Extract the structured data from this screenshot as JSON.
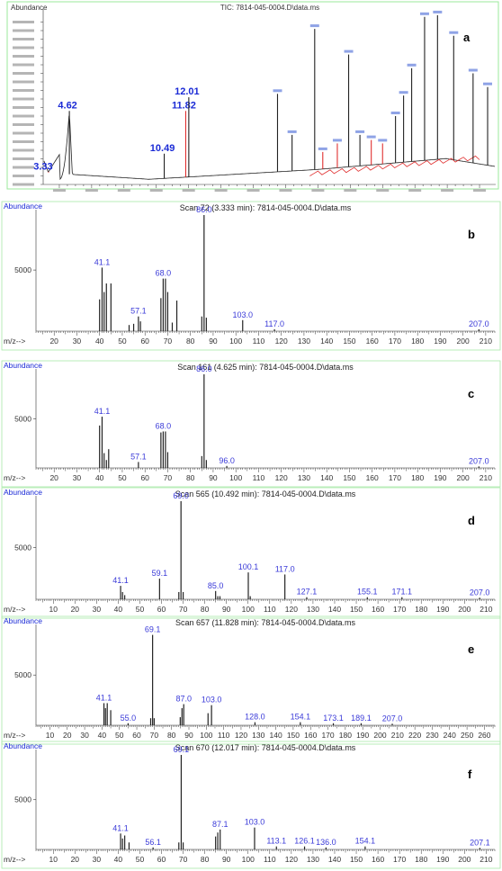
{
  "chart_data": [
    {
      "panel": "a",
      "type": "line",
      "title": "TIC: 7814-045-0004.D\\data.ms",
      "ylabel": "Abundance",
      "xlim": [
        3,
        31
      ],
      "ylim": [
        0,
        10000000
      ],
      "peaks": [
        {
          "x": 3.33,
          "y": 700000,
          "label": "3.33",
          "color": "red"
        },
        {
          "x": 4.62,
          "y": 4300000,
          "label": "4.62",
          "color": "black"
        },
        {
          "x": 10.49,
          "y": 1800000,
          "label": "10.49",
          "color": "black"
        },
        {
          "x": 11.82,
          "y": 4300000,
          "label": "11.82",
          "color": "red"
        },
        {
          "x": 12.01,
          "y": 5100000,
          "label": "12.01",
          "color": "black"
        },
        {
          "x": 17.5,
          "y": 5300000,
          "label": "",
          "color": "black"
        },
        {
          "x": 18.4,
          "y": 2900000,
          "label": "",
          "color": "black"
        },
        {
          "x": 19.8,
          "y": 9100000,
          "label": "",
          "color": "black"
        },
        {
          "x": 20.3,
          "y": 1900000,
          "label": "",
          "color": "red"
        },
        {
          "x": 21.2,
          "y": 2400000,
          "label": "",
          "color": "red"
        },
        {
          "x": 21.9,
          "y": 7600000,
          "label": "",
          "color": "black"
        },
        {
          "x": 22.6,
          "y": 2900000,
          "label": "",
          "color": "black"
        },
        {
          "x": 23.3,
          "y": 2600000,
          "label": "",
          "color": "red"
        },
        {
          "x": 24.0,
          "y": 2400000,
          "label": "",
          "color": "red"
        },
        {
          "x": 24.8,
          "y": 4000000,
          "label": "",
          "color": "black"
        },
        {
          "x": 25.3,
          "y": 5200000,
          "label": "",
          "color": "black"
        },
        {
          "x": 25.8,
          "y": 6800000,
          "label": "",
          "color": "black"
        },
        {
          "x": 26.6,
          "y": 9800000,
          "label": "",
          "color": "black"
        },
        {
          "x": 27.4,
          "y": 9900000,
          "label": "",
          "color": "black"
        },
        {
          "x": 28.4,
          "y": 8700000,
          "label": "",
          "color": "black"
        },
        {
          "x": 29.6,
          "y": 6500000,
          "label": "",
          "color": "black"
        },
        {
          "x": 30.5,
          "y": 5700000,
          "label": "",
          "color": "black"
        }
      ]
    },
    {
      "panel": "b",
      "type": "bar",
      "title": "Scan 72 (3.333 min): 7814-045-0004.D\\data.ms",
      "ylabel": "Abundance",
      "xlabel": "m/z-->",
      "xlim": [
        12,
        214
      ],
      "ylim": [
        0,
        9500
      ],
      "xticks": [
        20,
        30,
        40,
        50,
        60,
        70,
        80,
        90,
        100,
        110,
        120,
        130,
        140,
        150,
        160,
        170,
        180,
        190,
        200,
        210
      ],
      "ytick": 5000,
      "peaks": [
        [
          40,
          2600
        ],
        [
          41.1,
          5200
        ],
        [
          42,
          3200
        ],
        [
          43,
          3900
        ],
        [
          45,
          3900
        ],
        [
          53,
          500
        ],
        [
          55,
          600
        ],
        [
          57.1,
          1200
        ],
        [
          58,
          800
        ],
        [
          67,
          2700
        ],
        [
          68,
          4300
        ],
        [
          69,
          4300
        ],
        [
          70,
          3200
        ],
        [
          72,
          700
        ],
        [
          74,
          2500
        ],
        [
          85,
          1200
        ],
        [
          86,
          9500
        ],
        [
          87,
          1100
        ],
        [
          103,
          900
        ],
        [
          117,
          150
        ],
        [
          207,
          150
        ]
      ],
      "labels": [
        [
          41.1,
          "41.1"
        ],
        [
          57.1,
          "57.1"
        ],
        [
          68,
          "68.0"
        ],
        [
          86,
          "86.0"
        ],
        [
          103,
          "103.0"
        ],
        [
          117,
          "117.0"
        ],
        [
          207,
          "207.0"
        ]
      ]
    },
    {
      "panel": "c",
      "type": "bar",
      "title": "Scan 161 (4.625 min): 7814-045-0004.D\\data.ms",
      "ylabel": "Abundance",
      "xlabel": "m/z-->",
      "xlim": [
        12,
        214
      ],
      "ylim": [
        0,
        9500
      ],
      "xticks": [
        20,
        30,
        40,
        50,
        60,
        70,
        80,
        90,
        100,
        110,
        120,
        130,
        140,
        150,
        160,
        170,
        180,
        190,
        200,
        210
      ],
      "ytick": 5000,
      "peaks": [
        [
          40,
          4300
        ],
        [
          41.1,
          5200
        ],
        [
          42,
          1500
        ],
        [
          43,
          800
        ],
        [
          44,
          1900
        ],
        [
          57.1,
          600
        ],
        [
          67,
          3600
        ],
        [
          68,
          3700
        ],
        [
          69,
          3700
        ],
        [
          70,
          1600
        ],
        [
          85,
          1200
        ],
        [
          86,
          9500
        ],
        [
          87,
          800
        ],
        [
          96,
          200
        ],
        [
          207,
          150
        ]
      ],
      "labels": [
        [
          41.1,
          "41.1"
        ],
        [
          57.1,
          "57.1"
        ],
        [
          68,
          "68.0"
        ],
        [
          86,
          "86.0"
        ],
        [
          96,
          "96.0"
        ],
        [
          207,
          "207.0"
        ]
      ]
    },
    {
      "panel": "d",
      "type": "bar",
      "title": "Scan 565 (10.492 min): 7814-045-0004.D\\data.ms",
      "ylabel": "Abundance",
      "xlabel": "m/z-->",
      "xlim": [
        2,
        214
      ],
      "ylim": [
        0,
        9500
      ],
      "xticks": [
        10,
        20,
        30,
        40,
        50,
        60,
        70,
        80,
        90,
        100,
        110,
        120,
        130,
        140,
        150,
        160,
        170,
        180,
        190,
        200,
        210
      ],
      "ytick": 5000,
      "peaks": [
        [
          41.1,
          1300
        ],
        [
          42,
          700
        ],
        [
          43,
          400
        ],
        [
          59.1,
          2000
        ],
        [
          68,
          700
        ],
        [
          69,
          9500
        ],
        [
          70,
          700
        ],
        [
          85,
          800
        ],
        [
          86,
          300
        ],
        [
          87,
          300
        ],
        [
          100.1,
          2600
        ],
        [
          101,
          300
        ],
        [
          117,
          2400
        ],
        [
          127.1,
          200
        ],
        [
          155.1,
          200
        ],
        [
          171.1,
          200
        ],
        [
          207,
          150
        ]
      ],
      "labels": [
        [
          41.1,
          "41.1"
        ],
        [
          59.1,
          "59.1"
        ],
        [
          69,
          "69.0"
        ],
        [
          85,
          "85.0"
        ],
        [
          100.1,
          "100.1"
        ],
        [
          117,
          "117.0"
        ],
        [
          127.1,
          "127.1"
        ],
        [
          155.1,
          "155.1"
        ],
        [
          171.1,
          "171.1"
        ],
        [
          207,
          "207.0"
        ]
      ]
    },
    {
      "panel": "e",
      "type": "bar",
      "title": "Scan 657 (11.828 min): 7814-045-0004.D\\data.ms",
      "ylabel": "Abundance",
      "xlabel": "m/z-->",
      "xlim": [
        2,
        266
      ],
      "ylim": [
        0,
        9500
      ],
      "xticks": [
        10,
        20,
        30,
        40,
        50,
        60,
        70,
        80,
        90,
        100,
        110,
        120,
        130,
        140,
        150,
        160,
        170,
        180,
        190,
        200,
        210,
        220,
        230,
        240,
        250,
        260
      ],
      "ytick": 5000,
      "peaks": [
        [
          41.1,
          2200
        ],
        [
          42,
          1700
        ],
        [
          43,
          2200
        ],
        [
          45,
          1500
        ],
        [
          55,
          200
        ],
        [
          68,
          700
        ],
        [
          69.1,
          9000
        ],
        [
          70,
          700
        ],
        [
          85,
          800
        ],
        [
          86,
          1700
        ],
        [
          87,
          2100
        ],
        [
          101,
          1200
        ],
        [
          103,
          2000
        ],
        [
          128,
          300
        ],
        [
          154.1,
          300
        ],
        [
          173.1,
          200
        ],
        [
          189.1,
          200
        ],
        [
          207,
          150
        ]
      ],
      "labels": [
        [
          41.1,
          "41.1"
        ],
        [
          55,
          "55.0"
        ],
        [
          69.1,
          "69.1"
        ],
        [
          87,
          "87.0"
        ],
        [
          103,
          "103.0"
        ],
        [
          128,
          "128.0"
        ],
        [
          154.1,
          "154.1"
        ],
        [
          173.1,
          "173.1"
        ],
        [
          189.1,
          "189.1"
        ],
        [
          207,
          "207.0"
        ]
      ]
    },
    {
      "panel": "f",
      "type": "bar",
      "title": "Scan 670 (12.017 min): 7814-045-0004.D\\data.ms",
      "ylabel": "Abundance",
      "xlabel": "m/z-->",
      "xlim": [
        2,
        214
      ],
      "ylim": [
        0,
        9500
      ],
      "xticks": [
        10,
        20,
        30,
        40,
        50,
        60,
        70,
        80,
        90,
        100,
        110,
        120,
        130,
        140,
        150,
        160,
        170,
        180,
        190,
        200,
        210
      ],
      "ytick": 5000,
      "peaks": [
        [
          41.1,
          1600
        ],
        [
          42,
          1100
        ],
        [
          43,
          1400
        ],
        [
          45,
          700
        ],
        [
          56.1,
          200
        ],
        [
          68,
          700
        ],
        [
          69.1,
          9500
        ],
        [
          70,
          700
        ],
        [
          85,
          1300
        ],
        [
          86,
          1700
        ],
        [
          87.1,
          2000
        ],
        [
          103,
          2200
        ],
        [
          113.1,
          300
        ],
        [
          126.1,
          300
        ],
        [
          136,
          200
        ],
        [
          154.1,
          300
        ],
        [
          207.1,
          150
        ]
      ],
      "labels": [
        [
          41.1,
          "41.1"
        ],
        [
          56.1,
          "56.1"
        ],
        [
          69.1,
          "69.1"
        ],
        [
          87.1,
          "87.1"
        ],
        [
          103,
          "103.0"
        ],
        [
          113.1,
          "113.1"
        ],
        [
          126.1,
          "126.1"
        ],
        [
          136,
          "136.0"
        ],
        [
          154.1,
          "154.1"
        ],
        [
          207.1,
          "207.1"
        ]
      ]
    }
  ]
}
